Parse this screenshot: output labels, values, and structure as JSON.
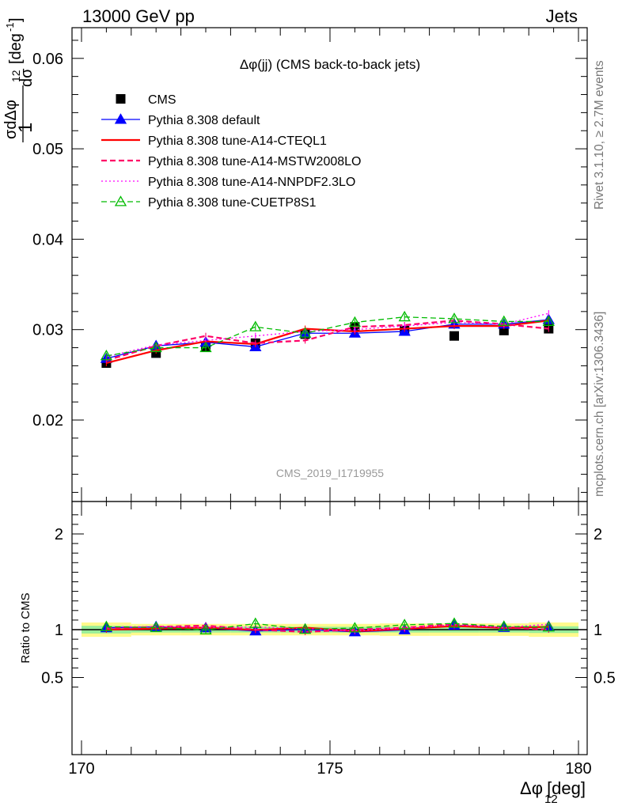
{
  "header": {
    "left": "13000 GeV pp",
    "right": "Jets"
  },
  "side_labels": {
    "rivet": "Rivet 3.1.10, ≥ 2.7M events",
    "mcplots": "mcplots.cern.ch [arXiv:1306.3436]"
  },
  "chart_data": {
    "type": "line",
    "title": "Δφ(jj) (CMS back-to-back jets)",
    "watermark": "CMS_2019_I1719955",
    "xlabel": "Δφ₁₂ [deg]",
    "xlabel_main": "Δφ",
    "xlabel_sub": "12",
    "xlabel_unit": "[deg]",
    "ylabel": "1/σ dσ/dΔφ₁₂ [deg⁻¹]",
    "ratio_ylabel": "Ratio to CMS",
    "xlim": [
      170,
      180
    ],
    "ylim": [
      0.0112,
      0.0635
    ],
    "ratio_ylim": [
      0.35,
      2.25
    ],
    "x_ticks": [
      "170",
      "175",
      "180"
    ],
    "y_ticks": [
      "0.02",
      "0.03",
      "0.04",
      "0.05",
      "0.06"
    ],
    "ratio_ticks": [
      "0.5",
      "1",
      "2"
    ],
    "legend_position": "top-left",
    "x": [
      170.5,
      171.5,
      172.5,
      173.5,
      174.5,
      175.5,
      176.5,
      177.5,
      178.5,
      179.4
    ],
    "series": [
      {
        "name": "CMS",
        "color": "#000000",
        "marker": "square",
        "values": [
          0.0263,
          0.0274,
          0.0281,
          0.0285,
          0.0295,
          0.0303,
          0.0299,
          0.0293,
          0.0299,
          0.0301
        ]
      },
      {
        "name": "Pythia 8.308 default",
        "color": "#0000ff",
        "marker": "triangle",
        "dash": "solid",
        "values": [
          0.0268,
          0.0282,
          0.0286,
          0.0281,
          0.0296,
          0.0296,
          0.0298,
          0.0306,
          0.0306,
          0.0311
        ]
      },
      {
        "name": "Pythia 8.308 tune-A14-CTEQL1",
        "color": "#ff0000",
        "dash": "solid",
        "width": 2.2,
        "values": [
          0.0263,
          0.0277,
          0.0287,
          0.0284,
          0.0301,
          0.0298,
          0.0301,
          0.0304,
          0.0304,
          0.031
        ]
      },
      {
        "name": "Pythia 8.308 tune-A14-MSTW2008LO",
        "color": "#ff0066",
        "dash": "dashed",
        "width": 2.2,
        "values": [
          0.0266,
          0.0282,
          0.0293,
          0.0285,
          0.0288,
          0.0303,
          0.0305,
          0.031,
          0.0306,
          0.0301
        ]
      },
      {
        "name": "Pythia 8.308 tune-A14-NNPDF2.3LO",
        "color": "#ff00ff",
        "dash": "dotted",
        "values": [
          0.027,
          0.0283,
          0.0288,
          0.0293,
          0.0298,
          0.03,
          0.0304,
          0.0308,
          0.0306,
          0.0318
        ]
      },
      {
        "name": "Pythia 8.308 tune-CUETP8S1",
        "color": "#00bb00",
        "marker": "open-triangle",
        "dash": "dashed",
        "values": [
          0.0271,
          0.028,
          0.028,
          0.0303,
          0.0296,
          0.0308,
          0.0314,
          0.0312,
          0.0309,
          0.0309
        ]
      }
    ],
    "ratio_band": {
      "x_edges": [
        170,
        171,
        172,
        173,
        174,
        175,
        176,
        177,
        178,
        179,
        180
      ],
      "inner": [
        0.04,
        0.03,
        0.03,
        0.03,
        0.03,
        0.03,
        0.03,
        0.03,
        0.03,
        0.035
      ],
      "outer": [
        0.075,
        0.06,
        0.06,
        0.06,
        0.06,
        0.06,
        0.065,
        0.065,
        0.065,
        0.075
      ]
    }
  }
}
